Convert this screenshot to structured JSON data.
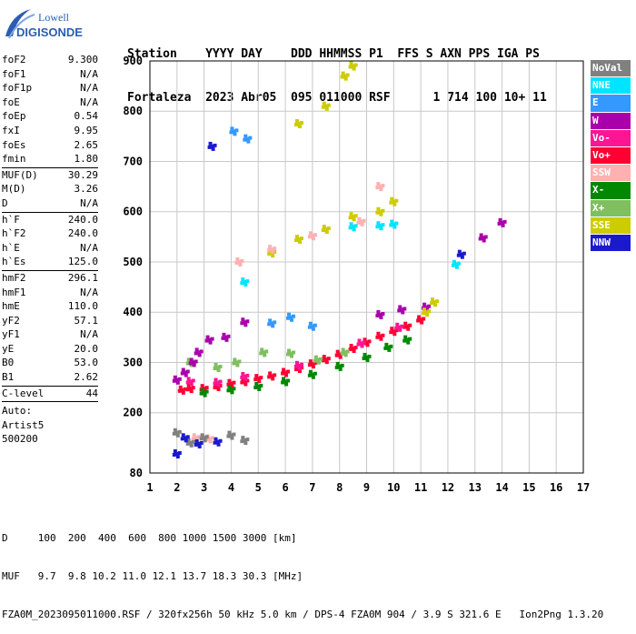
{
  "logo": {
    "line1": "Lowell",
    "line2": "DIGISONDE"
  },
  "header": {
    "line1": "Station    YYYY DAY    DDD HHMMSS P1  FFS S AXN PPS IGA PS",
    "line2": "Fortaleza  2023 Abr05  095 011000 RSF      1 714 100 10+ 11"
  },
  "params": {
    "group1": [
      {
        "label": "foF2",
        "value": "9.300"
      },
      {
        "label": "foF1",
        "value": "N/A"
      },
      {
        "label": "foF1p",
        "value": "N/A"
      },
      {
        "label": "foE",
        "value": "N/A"
      },
      {
        "label": "foEp",
        "value": "0.54"
      },
      {
        "label": "fxI",
        "value": "9.95"
      },
      {
        "label": "foEs",
        "value": "2.65"
      },
      {
        "label": "fmin",
        "value": "1.80"
      }
    ],
    "group2": [
      {
        "label": "MUF(D)",
        "value": "30.29"
      },
      {
        "label": "M(D)",
        "value": "3.26"
      },
      {
        "label": "D",
        "value": "N/A"
      }
    ],
    "group3": [
      {
        "label": "h`F",
        "value": "240.0"
      },
      {
        "label": "h`F2",
        "value": "240.0"
      },
      {
        "label": "h`E",
        "value": "N/A"
      },
      {
        "label": "h`Es",
        "value": "125.0"
      }
    ],
    "group4": [
      {
        "label": "hmF2",
        "value": "296.1"
      },
      {
        "label": "hmF1",
        "value": "N/A"
      },
      {
        "label": "hmE",
        "value": "110.0"
      },
      {
        "label": "yF2",
        "value": "57.1"
      },
      {
        "label": "yF1",
        "value": "N/A"
      },
      {
        "label": "yE",
        "value": "20.0"
      },
      {
        "label": "B0",
        "value": "53.0"
      },
      {
        "label": "B1",
        "value": "2.62"
      }
    ],
    "group5": [
      {
        "label": "C-level",
        "value": "44"
      }
    ],
    "auto": [
      "Auto:",
      "Artist5",
      "500200"
    ]
  },
  "legend": [
    {
      "label": "NoVal",
      "color": "#808080"
    },
    {
      "label": "NNE",
      "color": "#00e5ff"
    },
    {
      "label": "E",
      "color": "#3399ff"
    },
    {
      "label": "W",
      "color": "#aa00aa"
    },
    {
      "label": "Vo-",
      "color": "#ff1493"
    },
    {
      "label": "Vo+",
      "color": "#ff0033"
    },
    {
      "label": "SSW",
      "color": "#ffb0b0"
    },
    {
      "label": "X-",
      "color": "#008800"
    },
    {
      "label": "X+",
      "color": "#7fbf5f"
    },
    {
      "label": "SSE",
      "color": "#cccc00"
    },
    {
      "label": "NNW",
      "color": "#1a1acc"
    }
  ],
  "footer": {
    "line1": "D     100  200  400  600  800 1000 1500 3000 [km]",
    "line2": "MUF   9.7  9.8 10.2 11.0 12.1 13.7 18.3 30.3 [MHz]",
    "line3": "FZA0M_2023095011000.RSF / 320fx256h 50 kHz 5.0 km / DPS-4 FZA0M 904 / 3.9 S 321.6 E   Ion2Png 1.3.20"
  },
  "chart_data": {
    "type": "scatter",
    "title": "",
    "xlabel": "",
    "ylabel": "",
    "xlim": [
      1,
      17
    ],
    "ylim": [
      80,
      900
    ],
    "xticks": [
      1,
      2,
      3,
      4,
      5,
      6,
      7,
      8,
      9,
      10,
      11,
      12,
      13,
      14,
      15,
      16,
      17
    ],
    "yticks": [
      80,
      200,
      300,
      400,
      500,
      600,
      700,
      800,
      900
    ],
    "grid": true,
    "series": [
      {
        "name": "Vo+",
        "color": "#ff0033",
        "points": [
          [
            2.2,
            245
          ],
          [
            2.5,
            248
          ],
          [
            3.0,
            248
          ],
          [
            3.5,
            252
          ],
          [
            4.0,
            258
          ],
          [
            4.5,
            262
          ],
          [
            5.0,
            268
          ],
          [
            5.5,
            273
          ],
          [
            6.0,
            280
          ],
          [
            6.5,
            288
          ],
          [
            7.0,
            297
          ],
          [
            7.5,
            306
          ],
          [
            8.0,
            316
          ],
          [
            8.5,
            328
          ],
          [
            9.0,
            340
          ],
          [
            9.5,
            352
          ],
          [
            10.0,
            362
          ],
          [
            10.5,
            372
          ],
          [
            11.0,
            385
          ]
        ]
      },
      {
        "name": "X-",
        "color": "#008800",
        "points": [
          [
            3.0,
            240
          ],
          [
            4.0,
            246
          ],
          [
            5.0,
            252
          ],
          [
            6.0,
            262
          ],
          [
            7.0,
            276
          ],
          [
            8.0,
            292
          ],
          [
            9.0,
            310
          ],
          [
            9.8,
            330
          ],
          [
            10.5,
            345
          ]
        ]
      },
      {
        "name": "X+",
        "color": "#7fbf5f",
        "points": [
          [
            2.5,
            300
          ],
          [
            3.5,
            290
          ],
          [
            4.2,
            300
          ],
          [
            5.2,
            320
          ],
          [
            6.2,
            318
          ],
          [
            7.2,
            305
          ],
          [
            8.2,
            320
          ]
        ]
      },
      {
        "name": "W",
        "color": "#aa00aa",
        "points": [
          [
            2.0,
            265
          ],
          [
            2.3,
            280
          ],
          [
            2.6,
            300
          ],
          [
            2.8,
            320
          ],
          [
            3.2,
            345
          ],
          [
            3.8,
            350
          ],
          [
            4.5,
            380
          ],
          [
            9.5,
            395
          ],
          [
            10.3,
            405
          ],
          [
            11.2,
            410
          ],
          [
            13.3,
            548
          ],
          [
            14.0,
            578
          ]
        ]
      },
      {
        "name": "Vo-",
        "color": "#ff1493",
        "points": [
          [
            2.5,
            262
          ],
          [
            3.5,
            260
          ],
          [
            4.5,
            272
          ],
          [
            6.5,
            294
          ],
          [
            8.8,
            338
          ],
          [
            10.2,
            370
          ]
        ]
      },
      {
        "name": "SSE",
        "color": "#cccc00",
        "points": [
          [
            5.5,
            518
          ],
          [
            6.5,
            545
          ],
          [
            7.5,
            565
          ],
          [
            8.5,
            590
          ],
          [
            9.5,
            600
          ],
          [
            10.0,
            620
          ],
          [
            6.5,
            775
          ],
          [
            7.5,
            810
          ],
          [
            8.2,
            870
          ],
          [
            8.5,
            890
          ],
          [
            11.2,
            400
          ],
          [
            11.5,
            420
          ]
        ]
      },
      {
        "name": "SSW",
        "color": "#ffb0b0",
        "points": [
          [
            2.7,
            150
          ],
          [
            3.2,
            148
          ],
          [
            4.3,
            500
          ],
          [
            5.5,
            525
          ],
          [
            7.0,
            552
          ],
          [
            8.8,
            580
          ],
          [
            9.5,
            650
          ]
        ]
      },
      {
        "name": "NNE",
        "color": "#00e5ff",
        "points": [
          [
            8.5,
            570
          ],
          [
            9.5,
            572
          ],
          [
            10.0,
            575
          ],
          [
            4.5,
            460
          ],
          [
            12.3,
            495
          ]
        ]
      },
      {
        "name": "E",
        "color": "#3399ff",
        "points": [
          [
            5.5,
            378
          ],
          [
            6.2,
            390
          ],
          [
            7.0,
            372
          ],
          [
            4.1,
            760
          ],
          [
            4.6,
            745
          ]
        ]
      },
      {
        "name": "NoVal",
        "color": "#808080",
        "points": [
          [
            2.0,
            160
          ],
          [
            2.5,
            140
          ],
          [
            3.0,
            150
          ],
          [
            4.0,
            155
          ],
          [
            4.5,
            145
          ]
        ]
      },
      {
        "name": "NNW",
        "color": "#1a1acc",
        "points": [
          [
            2.3,
            150
          ],
          [
            2.8,
            138
          ],
          [
            3.5,
            142
          ],
          [
            2.0,
            118
          ],
          [
            3.3,
            730
          ],
          [
            12.5,
            515
          ]
        ]
      }
    ]
  }
}
